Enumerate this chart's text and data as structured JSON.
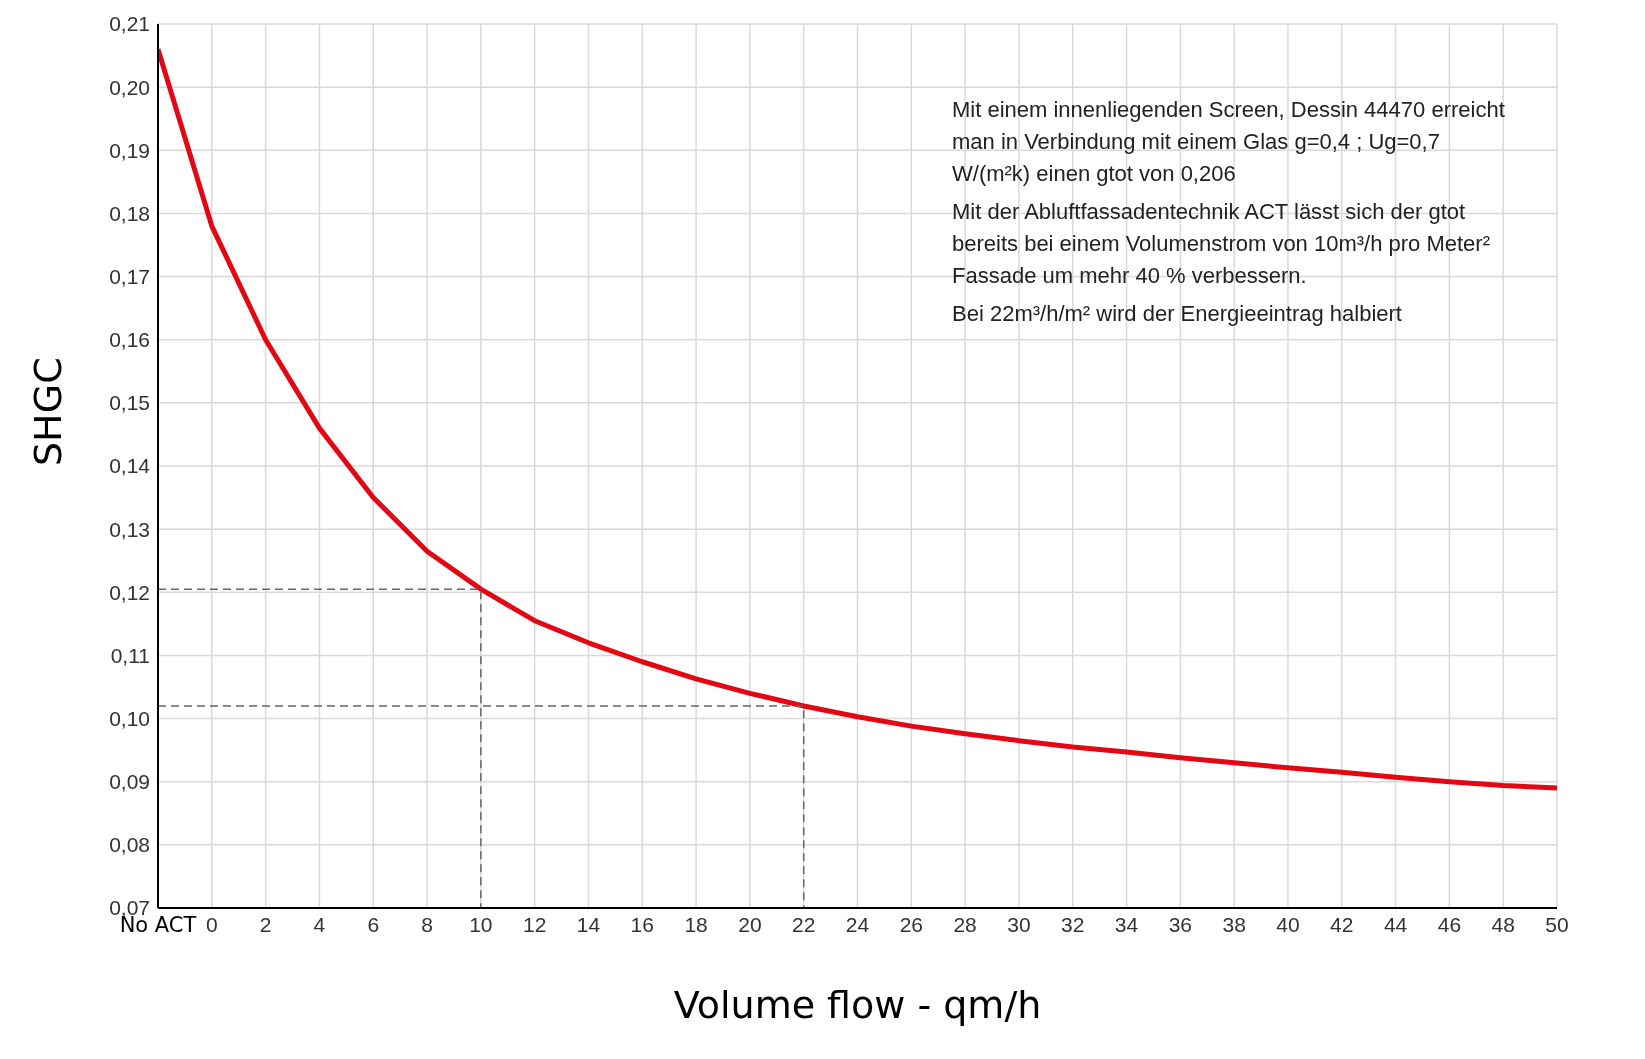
{
  "chart_data": {
    "type": "line",
    "xlabel": "Volume flow - qm/h",
    "ylabel": "SHGC",
    "xlim": [
      -2,
      50
    ],
    "xticks": [
      {
        "value": -2,
        "label": "No ACT"
      },
      0,
      2,
      4,
      6,
      8,
      10,
      12,
      14,
      16,
      18,
      20,
      22,
      24,
      26,
      28,
      30,
      32,
      34,
      36,
      38,
      40,
      42,
      44,
      46,
      48,
      50
    ],
    "ylim": [
      0.07,
      0.21
    ],
    "yticks": [
      {
        "value": 0.07,
        "label": "0,07"
      },
      {
        "value": 0.08,
        "label": "0,08"
      },
      {
        "value": 0.09,
        "label": "0,09"
      },
      {
        "value": 0.1,
        "label": "0,10"
      },
      {
        "value": 0.11,
        "label": "0,11"
      },
      {
        "value": 0.12,
        "label": "0,12"
      },
      {
        "value": 0.13,
        "label": "0,13"
      },
      {
        "value": 0.14,
        "label": "0,14"
      },
      {
        "value": 0.15,
        "label": "0,15"
      },
      {
        "value": 0.16,
        "label": "0,16"
      },
      {
        "value": 0.17,
        "label": "0,17"
      },
      {
        "value": 0.18,
        "label": "0,18"
      },
      {
        "value": 0.19,
        "label": "0,19"
      },
      {
        "value": 0.2,
        "label": "0,20"
      },
      {
        "value": 0.21,
        "label": "0,21"
      }
    ],
    "grid": true,
    "marker": "none",
    "series": [
      {
        "color": "#e30613",
        "line_style": "solid",
        "x": [
          -2,
          0,
          2,
          4,
          6,
          8,
          10,
          12,
          14,
          16,
          18,
          20,
          22,
          24,
          26,
          28,
          30,
          32,
          34,
          36,
          38,
          40,
          42,
          44,
          46,
          48,
          50
        ],
        "values": [
          0.206,
          0.178,
          0.16,
          0.146,
          0.135,
          0.1265,
          0.1205,
          0.1155,
          0.112,
          0.109,
          0.1063,
          0.104,
          0.102,
          0.1003,
          0.0988,
          0.0976,
          0.0965,
          0.0955,
          0.0947,
          0.0938,
          0.093,
          0.0922,
          0.0915,
          0.0907,
          0.09,
          0.0894,
          0.089
        ]
      },
      {
        "color": "#666666",
        "line_style": "dashed",
        "x": [
          -2,
          10,
          10
        ],
        "values": [
          0.1205,
          0.1205,
          0.07
        ]
      },
      {
        "color": "#666666",
        "line_style": "dashed",
        "x": [
          -2,
          22,
          22
        ],
        "values": [
          0.102,
          0.102,
          0.07
        ]
      }
    ],
    "annotations": [
      "Mit einem innenliegenden Screen, Dessin 44470 erreicht man in Verbindung mit einem Glas g=0,4 ; Ug=0,7 W/(m²k) einen gtot von 0,206",
      "Mit der Abluftfassadentechnik ACT lässt sich der gtot bereits bei einem Volumenstrom von 10m³/h pro Meter² Fassade um mehr 40 % verbessern.",
      "Bei 22m³/h/m² wird der Energieeintrag halbiert"
    ]
  }
}
